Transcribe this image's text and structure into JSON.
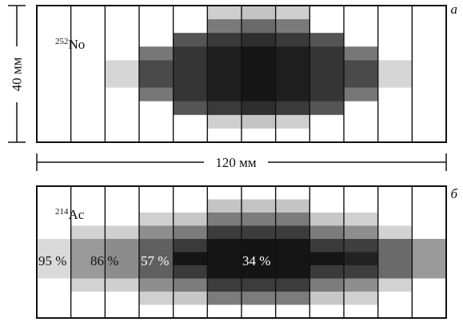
{
  "panel_a": {
    "letter": "а",
    "isotope_mass": "252",
    "isotope_symbol": "No",
    "height_dim": "40 мм",
    "width_dim": "120 мм",
    "columns": 12,
    "rows": 10,
    "blocks": [
      {
        "c0": 2,
        "c1": 3,
        "r0": 4,
        "r1": 6,
        "gray": "#d6d6d6"
      },
      {
        "c0": 3,
        "c1": 4,
        "r0": 3,
        "r1": 7,
        "gray": "#777777"
      },
      {
        "c0": 3,
        "c1": 4,
        "r0": 4,
        "r1": 6,
        "gray": "#4a4a4a"
      },
      {
        "c0": 4,
        "c1": 5,
        "r0": 2,
        "r1": 8,
        "gray": "#555555"
      },
      {
        "c0": 4,
        "c1": 5,
        "r0": 3,
        "r1": 7,
        "gray": "#353535"
      },
      {
        "c0": 5,
        "c1": 6,
        "r0": 0,
        "r1": 9,
        "gray": "#cfcfcf"
      },
      {
        "c0": 5,
        "c1": 6,
        "r0": 1,
        "r1": 8,
        "gray": "#7a7a7a"
      },
      {
        "c0": 5,
        "c1": 6,
        "r0": 2,
        "r1": 8,
        "gray": "#3a3a3a"
      },
      {
        "c0": 5,
        "c1": 6,
        "r0": 3,
        "r1": 7,
        "gray": "#1e1e1e"
      },
      {
        "c0": 6,
        "c1": 7,
        "r0": 0,
        "r1": 9,
        "gray": "#c4c4c4"
      },
      {
        "c0": 6,
        "c1": 7,
        "r0": 1,
        "r1": 8,
        "gray": "#6a6a6a"
      },
      {
        "c0": 6,
        "c1": 7,
        "r0": 2,
        "r1": 8,
        "gray": "#2e2e2e"
      },
      {
        "c0": 6,
        "c1": 7,
        "r0": 3,
        "r1": 7,
        "gray": "#151515"
      },
      {
        "c0": 7,
        "c1": 8,
        "r0": 0,
        "r1": 9,
        "gray": "#cfcfcf"
      },
      {
        "c0": 7,
        "c1": 8,
        "r0": 1,
        "r1": 8,
        "gray": "#7a7a7a"
      },
      {
        "c0": 7,
        "c1": 8,
        "r0": 2,
        "r1": 8,
        "gray": "#3a3a3a"
      },
      {
        "c0": 7,
        "c1": 8,
        "r0": 3,
        "r1": 7,
        "gray": "#1e1e1e"
      },
      {
        "c0": 8,
        "c1": 9,
        "r0": 2,
        "r1": 8,
        "gray": "#555555"
      },
      {
        "c0": 8,
        "c1": 9,
        "r0": 3,
        "r1": 7,
        "gray": "#353535"
      },
      {
        "c0": 9,
        "c1": 10,
        "r0": 3,
        "r1": 7,
        "gray": "#777777"
      },
      {
        "c0": 9,
        "c1": 10,
        "r0": 4,
        "r1": 6,
        "gray": "#4a4a4a"
      },
      {
        "c0": 10,
        "c1": 11,
        "r0": 4,
        "r1": 6,
        "gray": "#d6d6d6"
      }
    ]
  },
  "panel_b": {
    "letter": "б",
    "isotope_mass": "214",
    "isotope_symbol": "Ac",
    "columns": 12,
    "rows": 10,
    "percent_labels": [
      "95 %",
      "86 %",
      "57 %",
      "34 %"
    ],
    "blocks": [
      {
        "c0": 0,
        "c1": 1,
        "r0": 4,
        "r1": 7,
        "gray": "#dadada"
      },
      {
        "c0": 1,
        "c1": 2,
        "r0": 3,
        "r1": 8,
        "gray": "#d2d2d2"
      },
      {
        "c0": 1,
        "c1": 2,
        "r0": 4,
        "r1": 7,
        "gray": "#9a9a9a"
      },
      {
        "c0": 2,
        "c1": 3,
        "r0": 3,
        "r1": 8,
        "gray": "#cfcfcf"
      },
      {
        "c0": 2,
        "c1": 3,
        "r0": 4,
        "r1": 7,
        "gray": "#8c8c8c"
      },
      {
        "c0": 3,
        "c1": 4,
        "r0": 2,
        "r1": 9,
        "gray": "#d0d0d0"
      },
      {
        "c0": 3,
        "c1": 4,
        "r0": 3,
        "r1": 8,
        "gray": "#8e8e8e"
      },
      {
        "c0": 3,
        "c1": 4,
        "r0": 4,
        "r1": 7,
        "gray": "#606060"
      },
      {
        "c0": 4,
        "c1": 5,
        "r0": 2,
        "r1": 9,
        "gray": "#c7c7c7"
      },
      {
        "c0": 4,
        "c1": 5,
        "r0": 3,
        "r1": 8,
        "gray": "#7c7c7c"
      },
      {
        "c0": 4,
        "c1": 5,
        "r0": 4,
        "r1": 7,
        "gray": "#3a3a3a"
      },
      {
        "c0": 4,
        "c1": 5,
        "r0": 5,
        "r1": 6,
        "gray": "#151515"
      },
      {
        "c0": 5,
        "c1": 6,
        "r0": 1,
        "r1": 9,
        "gray": "#c4c4c4"
      },
      {
        "c0": 5,
        "c1": 6,
        "r0": 2,
        "r1": 9,
        "gray": "#7c7c7c"
      },
      {
        "c0": 5,
        "c1": 6,
        "r0": 3,
        "r1": 8,
        "gray": "#3c3c3c"
      },
      {
        "c0": 5,
        "c1": 6,
        "r0": 4,
        "r1": 7,
        "gray": "#151515"
      },
      {
        "c0": 6,
        "c1": 7,
        "r0": 1,
        "r1": 9,
        "gray": "#c4c4c4"
      },
      {
        "c0": 6,
        "c1": 7,
        "r0": 2,
        "r1": 9,
        "gray": "#7c7c7c"
      },
      {
        "c0": 6,
        "c1": 7,
        "r0": 3,
        "r1": 8,
        "gray": "#3c3c3c"
      },
      {
        "c0": 6,
        "c1": 7,
        "r0": 4,
        "r1": 7,
        "gray": "#141414"
      },
      {
        "c0": 7,
        "c1": 8,
        "r0": 1,
        "r1": 9,
        "gray": "#c4c4c4"
      },
      {
        "c0": 7,
        "c1": 8,
        "r0": 2,
        "r1": 9,
        "gray": "#7c7c7c"
      },
      {
        "c0": 7,
        "c1": 8,
        "r0": 3,
        "r1": 8,
        "gray": "#3c3c3c"
      },
      {
        "c0": 7,
        "c1": 8,
        "r0": 4,
        "r1": 7,
        "gray": "#151515"
      },
      {
        "c0": 8,
        "c1": 9,
        "r0": 2,
        "r1": 9,
        "gray": "#c7c7c7"
      },
      {
        "c0": 8,
        "c1": 9,
        "r0": 3,
        "r1": 8,
        "gray": "#7c7c7c"
      },
      {
        "c0": 8,
        "c1": 9,
        "r0": 4,
        "r1": 7,
        "gray": "#3a3a3a"
      },
      {
        "c0": 8,
        "c1": 9,
        "r0": 5,
        "r1": 6,
        "gray": "#151515"
      },
      {
        "c0": 9,
        "c1": 10,
        "r0": 2,
        "r1": 9,
        "gray": "#d0d0d0"
      },
      {
        "c0": 9,
        "c1": 10,
        "r0": 3,
        "r1": 8,
        "gray": "#8e8e8e"
      },
      {
        "c0": 9,
        "c1": 10,
        "r0": 4,
        "r1": 7,
        "gray": "#3e3e3e"
      },
      {
        "c0": 9,
        "c1": 10,
        "r0": 5,
        "r1": 6,
        "gray": "#222222"
      },
      {
        "c0": 10,
        "c1": 11,
        "r0": 3,
        "r1": 8,
        "gray": "#d2d2d2"
      },
      {
        "c0": 10,
        "c1": 11,
        "r0": 4,
        "r1": 7,
        "gray": "#6a6a6a"
      },
      {
        "c0": 11,
        "c1": 12,
        "r0": 4,
        "r1": 7,
        "gray": "#9a9a9a"
      }
    ]
  }
}
